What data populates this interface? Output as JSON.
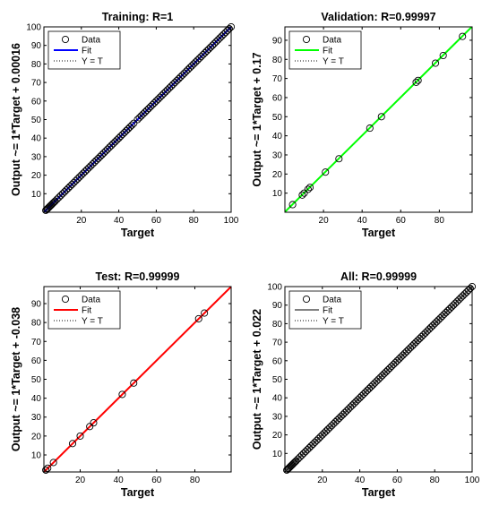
{
  "chart_data": [
    {
      "type": "scatter",
      "title": "Training: R=1",
      "xlabel": "Target",
      "ylabel": "Output ~= 1*Target + 0.00016",
      "xlim": [
        0,
        100
      ],
      "ylim": [
        0,
        100
      ],
      "xticks": [
        20,
        40,
        60,
        80,
        100
      ],
      "yticks": [
        10,
        20,
        30,
        40,
        50,
        60,
        70,
        80,
        90,
        100
      ],
      "grid": false,
      "legend_position": "top-left",
      "fit_color": "#0000ff",
      "fit": {
        "slope": 1,
        "intercept": 0.00016
      },
      "series": [
        {
          "name": "Data",
          "marker": "circle",
          "x": [
            1,
            1.5,
            2,
            2.5,
            3,
            3.5,
            4,
            4.5,
            5,
            5.5,
            6,
            7,
            8,
            9,
            10,
            11,
            12,
            13,
            14,
            15,
            16,
            17,
            18,
            19,
            20,
            21,
            22,
            23,
            24,
            25,
            26,
            27,
            28,
            29,
            30,
            31,
            32,
            33,
            34,
            35,
            36,
            37,
            38,
            39,
            40,
            41,
            42,
            43,
            44,
            45,
            46,
            47,
            48,
            50,
            51,
            52,
            53,
            54,
            55,
            56,
            57,
            58,
            59,
            60,
            61,
            62,
            63,
            64,
            65,
            66,
            67,
            68,
            69,
            70,
            71,
            72,
            73,
            74,
            75,
            76,
            77,
            78,
            79,
            80,
            81,
            82,
            83,
            84,
            85,
            86,
            87,
            88,
            89,
            90,
            91,
            92,
            93,
            94,
            95,
            96,
            97,
            98,
            99,
            100
          ],
          "y": [
            1,
            1.5,
            2,
            2.5,
            3,
            3.5,
            4,
            4.5,
            5,
            5.5,
            6,
            7,
            8,
            9,
            10,
            11,
            12,
            13,
            14,
            15,
            16,
            17,
            18,
            19,
            20,
            21,
            22,
            23,
            24,
            25,
            26,
            27,
            28,
            29,
            30,
            31,
            32,
            33,
            34,
            35,
            36,
            37,
            38,
            39,
            40,
            41,
            42,
            43,
            44,
            45,
            46,
            47,
            48,
            50,
            51,
            52,
            53,
            54,
            55,
            56,
            57,
            58,
            59,
            60,
            61,
            62,
            63,
            64,
            65,
            66,
            67,
            68,
            69,
            70,
            71,
            72,
            73,
            74,
            75,
            76,
            77,
            78,
            79,
            80,
            81,
            82,
            83,
            84,
            85,
            86,
            87,
            88,
            89,
            90,
            91,
            92,
            93,
            94,
            95,
            96,
            97,
            98,
            99,
            100
          ]
        },
        {
          "name": "Fit"
        },
        {
          "name": "Y = T"
        }
      ]
    },
    {
      "type": "scatter",
      "title": "Validation: R=0.99997",
      "xlabel": "Target",
      "ylabel": "Output ~= 1*Target + 0.17",
      "xlim": [
        0,
        97
      ],
      "ylim": [
        0,
        97
      ],
      "xticks": [
        20,
        40,
        60,
        80
      ],
      "yticks": [
        10,
        20,
        30,
        40,
        50,
        60,
        70,
        80,
        90
      ],
      "grid": false,
      "legend_position": "top-left",
      "fit_color": "#00ff00",
      "fit": {
        "slope": 1,
        "intercept": 0.17
      },
      "series": [
        {
          "name": "Data",
          "marker": "circle",
          "x": [
            4,
            9,
            10,
            12,
            13,
            21,
            28,
            44,
            50,
            68,
            69,
            78,
            82,
            92
          ],
          "y": [
            4,
            9,
            10,
            12,
            13,
            21,
            28,
            44,
            50,
            68,
            69,
            78,
            82,
            92
          ]
        },
        {
          "name": "Fit"
        },
        {
          "name": "Y = T"
        }
      ]
    },
    {
      "type": "scatter",
      "title": "Test: R=0.99999",
      "xlabel": "Target",
      "ylabel": "Output ~= 1*Target + -0.038",
      "xlim": [
        1,
        99
      ],
      "ylim": [
        1,
        99
      ],
      "xticks": [
        20,
        40,
        60,
        80
      ],
      "yticks": [
        10,
        20,
        30,
        40,
        50,
        60,
        70,
        80,
        90
      ],
      "grid": false,
      "legend_position": "top-left",
      "fit_color": "#ff0000",
      "fit": {
        "slope": 1,
        "intercept": -0.038
      },
      "series": [
        {
          "name": "Data",
          "marker": "circle",
          "x": [
            2,
            3,
            6,
            16,
            20,
            25,
            27,
            42,
            48,
            82,
            85
          ],
          "y": [
            2,
            3,
            6,
            16,
            20,
            25,
            27,
            42,
            48,
            82,
            85
          ]
        },
        {
          "name": "Fit"
        },
        {
          "name": "Y = T"
        }
      ]
    },
    {
      "type": "scatter",
      "title": "All: R=0.99999",
      "xlabel": "Target",
      "ylabel": "Output ~= 1*Target + 0.022",
      "xlim": [
        0,
        100
      ],
      "ylim": [
        0,
        100
      ],
      "xticks": [
        20,
        40,
        60,
        80,
        100
      ],
      "yticks": [
        10,
        20,
        30,
        40,
        50,
        60,
        70,
        80,
        90,
        100
      ],
      "grid": false,
      "legend_position": "top-left",
      "fit_color": "#808080",
      "fit": {
        "slope": 1,
        "intercept": 0.022
      },
      "series": [
        {
          "name": "Data",
          "marker": "circle",
          "x": [
            1,
            1.5,
            2,
            2.5,
            3,
            3.5,
            4,
            4.5,
            5,
            5.5,
            6,
            7,
            8,
            9,
            10,
            11,
            12,
            13,
            14,
            15,
            16,
            17,
            18,
            19,
            20,
            21,
            22,
            23,
            24,
            25,
            26,
            27,
            28,
            29,
            30,
            31,
            32,
            33,
            34,
            35,
            36,
            37,
            38,
            39,
            40,
            41,
            42,
            43,
            44,
            45,
            46,
            47,
            48,
            49,
            50,
            51,
            52,
            53,
            54,
            55,
            56,
            57,
            58,
            59,
            60,
            61,
            62,
            63,
            64,
            65,
            66,
            67,
            68,
            69,
            70,
            71,
            72,
            73,
            74,
            75,
            76,
            77,
            78,
            79,
            80,
            81,
            82,
            83,
            84,
            85,
            86,
            87,
            88,
            89,
            90,
            91,
            92,
            93,
            94,
            95,
            96,
            97,
            98,
            99,
            100
          ],
          "y": [
            1,
            1.5,
            2,
            2.5,
            3,
            3.5,
            4,
            4.5,
            5,
            5.5,
            6,
            7,
            8,
            9,
            10,
            11,
            12,
            13,
            14,
            15,
            16,
            17,
            18,
            19,
            20,
            21,
            22,
            23,
            24,
            25,
            26,
            27,
            28,
            29,
            30,
            31,
            32,
            33,
            34,
            35,
            36,
            37,
            38,
            39,
            40,
            41,
            42,
            43,
            44,
            45,
            46,
            47,
            48,
            49,
            50,
            51,
            52,
            53,
            54,
            55,
            56,
            57,
            58,
            59,
            60,
            61,
            62,
            63,
            64,
            65,
            66,
            67,
            68,
            69,
            70,
            71,
            72,
            73,
            74,
            75,
            76,
            77,
            78,
            79,
            80,
            81,
            82,
            83,
            84,
            85,
            86,
            87,
            88,
            89,
            90,
            91,
            92,
            93,
            94,
            95,
            96,
            97,
            98,
            99,
            100
          ]
        },
        {
          "name": "Fit"
        },
        {
          "name": "Y = T"
        }
      ]
    }
  ]
}
